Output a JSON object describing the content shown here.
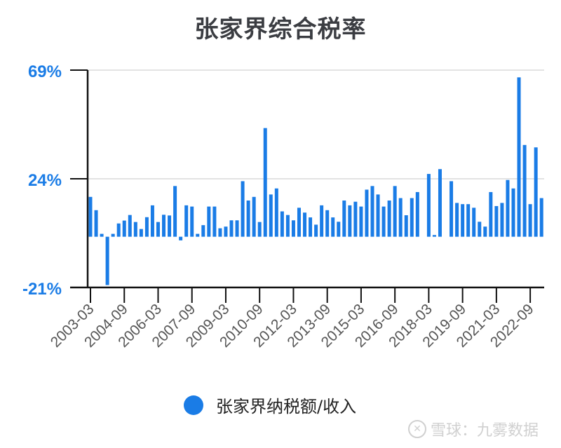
{
  "chart_data": {
    "type": "bar",
    "title": "张家界综合税率",
    "xlabel": "",
    "ylabel": "",
    "ylim": [
      -21,
      69
    ],
    "yticks": [
      "69%",
      "24%",
      "-21%"
    ],
    "ytick_values": [
      69,
      24,
      -21
    ],
    "grid": true,
    "legend_position": "bottom",
    "xtick_labels": [
      "2003-03",
      "2004-09",
      "2006-03",
      "2007-09",
      "2009-03",
      "2010-09",
      "2012-03",
      "2013-09",
      "2015-03",
      "2016-09",
      "2018-03",
      "2019-09",
      "2021-03",
      "2022-09"
    ],
    "series": [
      {
        "name": "张家界纳税额/收入",
        "color": "#1a7ce6",
        "x": [
          "2003-03",
          "2003-06",
          "2003-09",
          "2003-12",
          "2004-03",
          "2004-06",
          "2004-09",
          "2004-12",
          "2005-03",
          "2005-06",
          "2005-09",
          "2005-12",
          "2006-03",
          "2006-06",
          "2006-09",
          "2006-12",
          "2007-03",
          "2007-06",
          "2007-09",
          "2007-12",
          "2008-03",
          "2008-06",
          "2008-09",
          "2008-12",
          "2009-03",
          "2009-06",
          "2009-09",
          "2009-12",
          "2010-03",
          "2010-06",
          "2010-09",
          "2010-12",
          "2011-03",
          "2011-06",
          "2011-09",
          "2011-12",
          "2012-03",
          "2012-06",
          "2012-09",
          "2012-12",
          "2013-03",
          "2013-06",
          "2013-09",
          "2013-12",
          "2014-03",
          "2014-06",
          "2014-09",
          "2014-12",
          "2015-03",
          "2015-06",
          "2015-09",
          "2015-12",
          "2016-03",
          "2016-06",
          "2016-09",
          "2016-12",
          "2017-03",
          "2017-06",
          "2017-09",
          "2017-12",
          "2018-03",
          "2018-06",
          "2018-09",
          "2018-12",
          "2019-03",
          "2019-06",
          "2019-09",
          "2019-12",
          "2020-03",
          "2020-06",
          "2020-09",
          "2020-12",
          "2021-03",
          "2021-06",
          "2021-09",
          "2021-12",
          "2022-03",
          "2022-06",
          "2022-09",
          "2022-12",
          "2023-03"
        ],
        "values": [
          16.5,
          11,
          1.2,
          -20,
          1.2,
          5.5,
          6.7,
          9,
          6.1,
          3.2,
          8.1,
          13,
          6.1,
          9.1,
          8.8,
          21,
          -1.5,
          13,
          12.5,
          1.2,
          4.8,
          12.5,
          12.5,
          3.5,
          4.2,
          6.8,
          6.8,
          23,
          15,
          16.5,
          6.1,
          45,
          17.5,
          20,
          10.5,
          9,
          6.8,
          12,
          10,
          8,
          5,
          13,
          11,
          8,
          6.2,
          15,
          13,
          14.5,
          12.5,
          19.5,
          21,
          17.5,
          12.5,
          15,
          21,
          16,
          8.9,
          16,
          18.5,
          null,
          26,
          0.7,
          28,
          null,
          23,
          14,
          13.5,
          13.5,
          12,
          6.2,
          4.2,
          18.5,
          12.7,
          14,
          23.5,
          20,
          66,
          38,
          13.5,
          37,
          16
        ]
      }
    ]
  },
  "legend": {
    "label": "张家界纳税额/收入"
  },
  "watermark": {
    "icon": "xueqiu-logo-icon",
    "text": "雪球：九雾数据"
  }
}
